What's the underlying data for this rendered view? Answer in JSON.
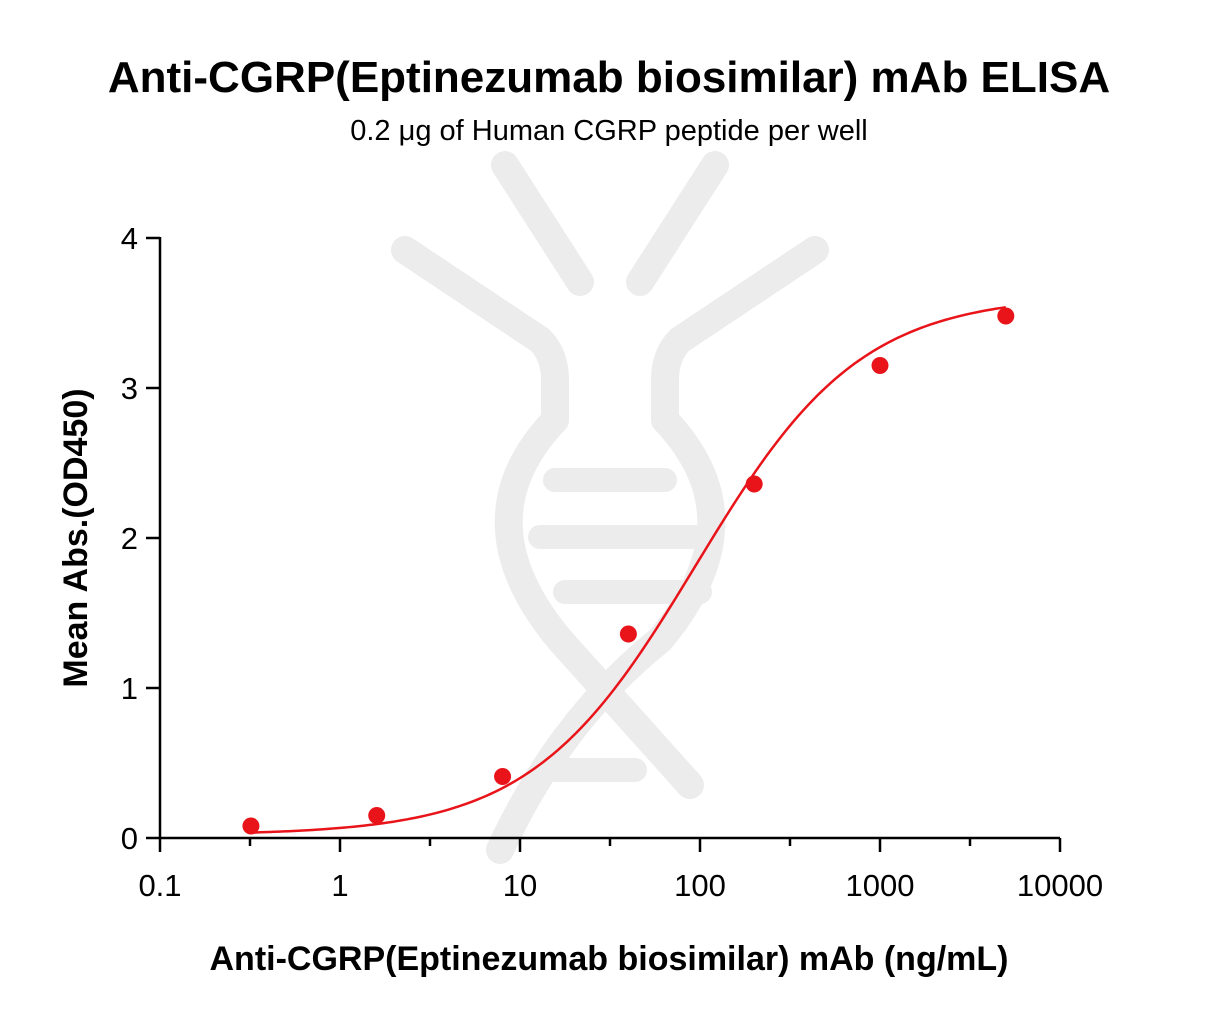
{
  "chart_data": {
    "type": "scatter",
    "title": "Anti-CGRP(Eptinezumab biosimilar) mAb ELISA",
    "subtitle": "0.2 μg of Human CGRP peptide per well",
    "xlabel": "Anti-CGRP(Eptinezumab biosimilar) mAb (ng/mL)",
    "ylabel": "Mean Abs.(OD450)",
    "xscale": "log",
    "xlim": [
      0.1,
      10000
    ],
    "ylim": [
      0,
      4
    ],
    "x_ticks": [
      "0.1",
      "1",
      "10",
      "100",
      "1000",
      "10000"
    ],
    "y_ticks": [
      "0",
      "1",
      "2",
      "3",
      "4"
    ],
    "grid": false,
    "legend": "none",
    "series": [
      {
        "x": [
          0.32,
          1.6,
          8,
          40,
          200,
          1000,
          5000
        ],
        "y": [
          0.08,
          0.15,
          0.41,
          1.36,
          2.36,
          3.15,
          3.48
        ],
        "color": "#e8141a",
        "fit": "four-parameter logistic curve"
      }
    ]
  }
}
